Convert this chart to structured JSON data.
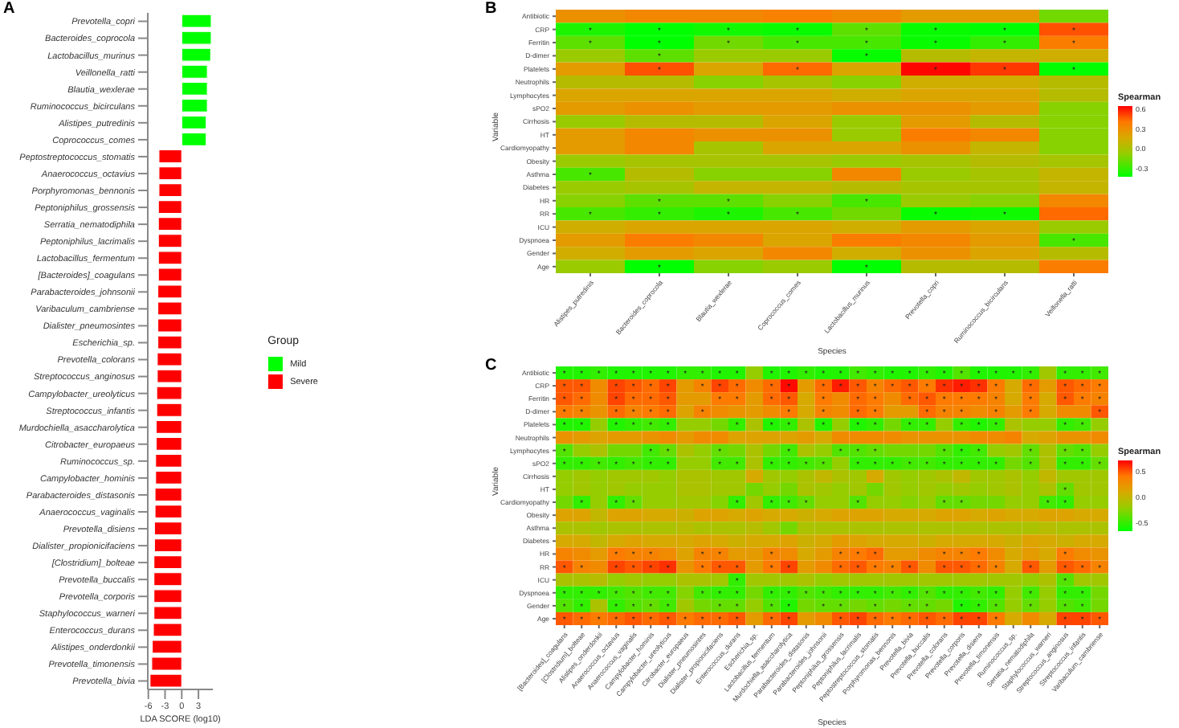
{
  "chart_data": [
    {
      "type": "bar",
      "orientation": "horizontal",
      "stacked": true,
      "annotations": [
        "A"
      ],
      "xlabel": "LDA SCORE (log10)",
      "legend_title": "Group",
      "legend": "right",
      "xlim": [
        -6.1,
        5.6
      ],
      "xticks": [
        -6,
        -3,
        0,
        3
      ],
      "categories": [
        "Prevotella_copri",
        "Bacteroides_coprocola",
        "Lactobacillus_murinus",
        "Veillonella_ratti",
        "Blautia_wexlerae",
        "Ruminococcus_bicirculans",
        "Alistipes_putredinis",
        "Coprococcus_comes",
        "Peptostreptococcus_stomatis",
        "Anaerococcus_octavius",
        "Porphyromonas_bennonis",
        "Peptoniphilus_grossensis",
        "Serratia_nematodiphila",
        "Peptoniphilus_lacrimalis",
        "Lactobacillus_fermentum",
        "[Bacteroides]_coagulans",
        "Parabacteroides_johnsonii",
        "Varibaculum_cambriense",
        "Dialister_pneumosintes",
        "Escherichia_sp.",
        "Prevotella_colorans",
        "Streptococcus_anginosus",
        "Campylobacter_ureolyticus",
        "Streptococcus_infantis",
        "Murdochiella_asaccharolytica",
        "Citrobacter_europaeus",
        "Ruminococcus_sp.",
        "Campylobacter_hominis",
        "Parabacteroides_distasonis",
        "Anaerococcus_vaginalis",
        "Prevotella_disiens",
        "Dialister_propionicifaciens",
        "[Clostridium]_bolteae",
        "Prevotella_buccalis",
        "Prevotella_corporis",
        "Staphylococcus_warneri",
        "Enterococcus_durans",
        "Alistipes_onderdonkii",
        "Prevotella_timonensis",
        "Prevotella_bivia"
      ],
      "series": [
        {
          "name": "Mild",
          "color": "#00ff00",
          "values": [
            5.3,
            5.3,
            5.2,
            4.6,
            4.6,
            4.6,
            4.4,
            4.4,
            null,
            null,
            null,
            null,
            null,
            null,
            null,
            null,
            null,
            null,
            null,
            null,
            null,
            null,
            null,
            null,
            null,
            null,
            null,
            null,
            null,
            null,
            null,
            null,
            null,
            null,
            null,
            null,
            null,
            null,
            null,
            null
          ]
        },
        {
          "name": "Severe",
          "color": "#ff0000",
          "values": [
            null,
            null,
            null,
            null,
            null,
            null,
            null,
            null,
            -4.1,
            -4.1,
            -4.1,
            -4.2,
            -4.2,
            -4.2,
            -4.2,
            -4.2,
            -4.3,
            -4.3,
            -4.3,
            -4.3,
            -4.4,
            -4.4,
            -4.5,
            -4.5,
            -4.6,
            -4.6,
            -4.7,
            -4.7,
            -4.8,
            -4.8,
            -4.9,
            -4.9,
            -5.0,
            -5.0,
            -5.0,
            -5.0,
            -5.1,
            -5.3,
            -5.4,
            -5.7
          ]
        }
      ]
    },
    {
      "type": "heatmap",
      "annotations": [
        "B"
      ],
      "xlabel": "Species",
      "ylabel": "Variable",
      "clabel": "Spearman",
      "clim": [
        -0.42,
        0.66
      ],
      "cticks": [
        -0.3,
        {
          "value": 0,
          "label": "0.0"
        },
        0.3,
        0.6
      ],
      "categories": [
        "Alistipes_putredinis",
        "Bacteroides_coprocola",
        "Blautia_wexlerae",
        "Coprococcus_comes",
        "Lactobacillus_murinus",
        "Prevotella_copri",
        "Ruminococcus_bicirculans",
        "Veillonella_ratti"
      ],
      "y_categories": [
        "Antibiotic",
        "CRP",
        "Ferritin",
        "D-dimer",
        "Platelets",
        "Neutrophils",
        "Lymphocytes",
        "sPO2",
        "Cirrhosis",
        "HT",
        "Cardiomyopathy",
        "Obesity",
        "Asthma",
        "Diabetes",
        "HR",
        "RR",
        "ICU",
        "Dyspnoea",
        "Gender",
        "Age"
      ],
      "cells": [
        [
          0.3,
          0.35,
          0.35,
          0.38,
          0.33,
          0.25,
          0.25,
          -0.15
        ],
        [
          -0.35,
          -0.42,
          -0.38,
          -0.4,
          -0.2,
          -0.4,
          -0.42,
          0.5
        ],
        [
          -0.2,
          -0.42,
          -0.15,
          -0.25,
          -0.25,
          -0.4,
          -0.3,
          0.4
        ],
        [
          -0.05,
          -0.2,
          -0.05,
          -0.05,
          -0.4,
          0.05,
          0.1,
          0.15
        ],
        [
          0.25,
          0.5,
          0.2,
          0.45,
          0.2,
          0.65,
          0.55,
          -0.42
        ],
        [
          0.05,
          0.05,
          -0.1,
          0,
          -0.1,
          0.15,
          0.15,
          0.05
        ],
        [
          0.2,
          0.2,
          0.2,
          0.2,
          0.15,
          0.2,
          0.2,
          0.05
        ],
        [
          0.25,
          0.3,
          0.25,
          0.25,
          0.3,
          0.3,
          0.25,
          -0.1
        ],
        [
          -0.05,
          0.05,
          0.05,
          0.2,
          -0.05,
          0.25,
          0.05,
          -0.1
        ],
        [
          0.25,
          0.35,
          0.3,
          0.3,
          -0.05,
          0.4,
          0.35,
          -0.1
        ],
        [
          0.25,
          0.35,
          0,
          0.2,
          0.2,
          0.3,
          0.1,
          -0.1
        ],
        [
          -0.05,
          0,
          0,
          0,
          -0.05,
          0,
          0.05,
          0
        ],
        [
          -0.25,
          0.05,
          -0.1,
          -0.1,
          0.35,
          -0.05,
          0,
          0.1
        ],
        [
          -0.05,
          0,
          0.1,
          0.1,
          0.05,
          0,
          0,
          0.1
        ],
        [
          -0.1,
          -0.2,
          -0.2,
          -0.1,
          -0.25,
          -0.05,
          -0.1,
          0.35
        ],
        [
          -0.25,
          -0.3,
          -0.35,
          -0.25,
          -0.15,
          -0.4,
          -0.38,
          0.45
        ],
        [
          0.15,
          0.2,
          0.2,
          0.2,
          0.15,
          0.25,
          0.2,
          -0.05
        ],
        [
          0.25,
          0.4,
          0.35,
          0.2,
          0.4,
          0.35,
          0.25,
          -0.25
        ],
        [
          0.15,
          0.25,
          0.2,
          0.35,
          0.15,
          0.3,
          0.2,
          0.05
        ],
        [
          -0.05,
          -0.42,
          -0.1,
          -0.05,
          -0.42,
          0.05,
          0.05,
          0.4
        ]
      ],
      "cell_labels": [
        [
          null,
          null,
          null,
          null,
          null,
          null,
          null,
          null
        ],
        [
          "*",
          "*",
          "*",
          "*",
          "*",
          "*",
          "*",
          "*"
        ],
        [
          "*",
          "*",
          "*",
          "*",
          "*",
          "*",
          "*",
          "*"
        ],
        [
          null,
          "*",
          null,
          null,
          "*",
          null,
          null,
          null
        ],
        [
          null,
          "*",
          null,
          "*",
          null,
          "*",
          "*",
          "*"
        ],
        [
          null,
          null,
          null,
          null,
          null,
          null,
          null,
          null
        ],
        [
          null,
          null,
          null,
          null,
          null,
          null,
          null,
          null
        ],
        [
          null,
          null,
          null,
          null,
          null,
          null,
          null,
          null
        ],
        [
          null,
          null,
          null,
          null,
          null,
          null,
          null,
          null
        ],
        [
          null,
          null,
          null,
          null,
          null,
          null,
          null,
          null
        ],
        [
          null,
          null,
          null,
          null,
          null,
          null,
          null,
          null
        ],
        [
          null,
          null,
          null,
          null,
          null,
          null,
          null,
          null
        ],
        [
          "*",
          null,
          null,
          null,
          null,
          null,
          null,
          null
        ],
        [
          null,
          null,
          null,
          null,
          null,
          null,
          null,
          null
        ],
        [
          null,
          "*",
          "*",
          null,
          "*",
          null,
          null,
          null
        ],
        [
          "*",
          "*",
          "*",
          "*",
          null,
          "*",
          "*",
          null
        ],
        [
          null,
          null,
          null,
          null,
          null,
          null,
          null,
          null
        ],
        [
          null,
          null,
          null,
          null,
          null,
          null,
          null,
          "*"
        ],
        [
          null,
          null,
          null,
          null,
          null,
          null,
          null,
          null
        ],
        [
          null,
          "*",
          null,
          null,
          "*",
          null,
          null,
          null
        ]
      ]
    },
    {
      "type": "heatmap",
      "annotations": [
        "C"
      ],
      "xlabel": "Species",
      "ylabel": "Variable",
      "clabel": "Spearman",
      "clim": [
        -0.65,
        0.72
      ],
      "cticks": [
        -0.5,
        {
          "value": 0,
          "label": "0.0"
        },
        0.5
      ],
      "categories": [
        "[Bacteroides]_coagulans",
        "[Clostridium]_bolteae",
        "Alistipes_onderdonkii",
        "Anaerococcus_octavius",
        "Anaerococcus_vaginalis",
        "Campylobacter_hominis",
        "Campylobacter_ureolyticus",
        "Citrobacter_europaeus",
        "Dialister_pneumosintes",
        "Dialister_propionicifaciens",
        "Enterococcus_durans",
        "Escherichia_sp.",
        "Lactobacillus_fermentum",
        "Murdochiella_asaccharolytica",
        "Parabacteroides_distasonis",
        "Parabacteroides_johnsonii",
        "Peptoniphilus_grossensis",
        "Peptoniphilus_lacrimalis",
        "Peptostreptococcus_stomatis",
        "Porphyromonas_bennonis",
        "Prevotella_bivia",
        "Prevotella_buccalis",
        "Prevotella_colorans",
        "Prevotella_corporis",
        "Prevotella_disiens",
        "Prevotella_timonensis",
        "Ruminococcus_sp.",
        "Serratia_nematodiphila",
        "Staphylococcus_warneri",
        "Streptococcus_anginosus",
        "Streptococcus_infantis",
        "Varibaculum_cambriense"
      ],
      "y_categories": [
        "Antibiotic",
        "CRP",
        "Ferritin",
        "D-dimer",
        "Platelets",
        "Neutrophils",
        "Lymphocytes",
        "sPO2",
        "Cirrhosis",
        "HT",
        "Cardiomyopathy",
        "Obesity",
        "Asthma",
        "Diabetes",
        "HR",
        "RR",
        "ICU",
        "Dyspnoea",
        "Gender",
        "Age"
      ],
      "cells": [
        [
          -0.55,
          -0.55,
          -0.5,
          -0.55,
          -0.55,
          -0.55,
          -0.55,
          -0.5,
          -0.5,
          -0.55,
          -0.55,
          -0.2,
          -0.55,
          -0.55,
          -0.5,
          -0.55,
          -0.55,
          -0.45,
          -0.5,
          -0.55,
          -0.55,
          -0.5,
          -0.55,
          -0.4,
          -0.55,
          -0.55,
          -0.55,
          -0.5,
          -0.15,
          -0.5,
          -0.5,
          -0.45
        ],
        [
          0.5,
          0.5,
          0.3,
          0.55,
          0.5,
          0.45,
          0.55,
          0.2,
          0.35,
          0.55,
          0.45,
          0.3,
          0.45,
          0.7,
          0.2,
          0.45,
          0.65,
          0.5,
          0.35,
          0.45,
          0.5,
          0.4,
          0.6,
          0.65,
          0.6,
          0.4,
          0.1,
          0.45,
          0.2,
          0.5,
          0.45,
          0.4
        ],
        [
          0.5,
          0.45,
          0.3,
          0.55,
          0.45,
          0.45,
          0.5,
          0.2,
          0.2,
          0.4,
          0.4,
          0.2,
          0.45,
          0.5,
          0.1,
          0.4,
          0.3,
          0.45,
          0.4,
          0.3,
          0.45,
          0.5,
          0.4,
          0.4,
          0.4,
          0.35,
          0.1,
          0.4,
          0.1,
          0.5,
          0.4,
          0.35
        ],
        [
          0.4,
          0.35,
          0.25,
          0.45,
          0.35,
          0.4,
          0.45,
          0.15,
          0.35,
          0.3,
          0.25,
          0.2,
          0.3,
          0.4,
          0.1,
          0.35,
          0.3,
          0.45,
          0.4,
          0.2,
          0.2,
          0.45,
          0.35,
          0.35,
          0.3,
          0.35,
          0.2,
          0.4,
          0.1,
          0.3,
          0.3,
          0.5
        ],
        [
          -0.55,
          -0.55,
          -0.2,
          -0.55,
          -0.5,
          -0.45,
          -0.5,
          -0.2,
          -0.2,
          -0.3,
          -0.5,
          -0.1,
          -0.55,
          -0.5,
          -0.1,
          -0.55,
          -0.2,
          -0.55,
          -0.5,
          -0.3,
          -0.5,
          -0.5,
          -0.2,
          -0.5,
          -0.55,
          -0.5,
          -0.1,
          -0.2,
          -0.2,
          -0.5,
          -0.45,
          -0.2
        ],
        [
          0.25,
          0.2,
          0.15,
          0.2,
          0.2,
          0.25,
          0.3,
          0.2,
          0.3,
          0.3,
          0.15,
          0.15,
          0.15,
          0.15,
          0.2,
          0.1,
          0.3,
          0.3,
          0.3,
          0.3,
          0.25,
          0.25,
          0.25,
          0.25,
          0.3,
          0.3,
          0.35,
          0.1,
          0.15,
          0.25,
          0.25,
          0.3
        ],
        [
          -0.4,
          -0.2,
          -0.1,
          -0.3,
          -0.3,
          -0.45,
          -0.35,
          -0.1,
          -0.2,
          -0.35,
          -0.3,
          -0.1,
          -0.3,
          -0.45,
          -0.1,
          -0.2,
          -0.4,
          -0.4,
          -0.35,
          -0.3,
          -0.3,
          -0.3,
          -0.4,
          -0.5,
          -0.45,
          -0.2,
          -0.15,
          -0.35,
          -0.1,
          -0.35,
          -0.4,
          -0.2
        ],
        [
          -0.5,
          -0.5,
          -0.45,
          -0.5,
          -0.45,
          -0.5,
          -0.5,
          -0.2,
          -0.2,
          -0.45,
          -0.45,
          -0.1,
          -0.5,
          -0.5,
          -0.45,
          -0.4,
          -0.2,
          -0.5,
          -0.5,
          -0.5,
          -0.45,
          -0.45,
          -0.5,
          -0.5,
          -0.5,
          -0.5,
          -0.3,
          -0.4,
          -0.1,
          -0.5,
          -0.5,
          -0.35
        ],
        [
          -0.2,
          -0.15,
          -0.2,
          -0.15,
          -0.15,
          -0.15,
          -0.2,
          -0.1,
          -0.1,
          -0.15,
          -0.15,
          0.1,
          -0.15,
          -0.2,
          -0.1,
          0,
          -0.1,
          -0.15,
          0.1,
          -0.15,
          -0.2,
          -0.15,
          -0.1,
          0,
          -0.15,
          -0.15,
          -0.1,
          -0.2,
          0,
          -0.15,
          -0.15,
          -0.15
        ],
        [
          -0.2,
          -0.15,
          -0.2,
          -0.15,
          -0.2,
          -0.2,
          -0.2,
          -0.1,
          -0.1,
          -0.15,
          -0.15,
          -0.3,
          -0.2,
          -0.3,
          -0.1,
          -0.15,
          -0.2,
          -0.15,
          -0.3,
          -0.15,
          -0.2,
          -0.15,
          -0.2,
          -0.15,
          -0.2,
          -0.15,
          -0.1,
          -0.2,
          -0.1,
          -0.35,
          -0.15,
          -0.15
        ],
        [
          -0.3,
          -0.5,
          -0.2,
          -0.5,
          -0.35,
          -0.2,
          -0.2,
          -0.15,
          -0.15,
          -0.25,
          -0.5,
          -0.15,
          -0.5,
          -0.45,
          -0.35,
          -0.2,
          -0.2,
          -0.4,
          -0.2,
          -0.2,
          -0.25,
          -0.2,
          -0.35,
          -0.35,
          -0.3,
          -0.3,
          -0.2,
          -0.2,
          -0.45,
          -0.5,
          -0.2,
          -0.2
        ],
        [
          0.15,
          0.15,
          0,
          0.15,
          0.15,
          0.1,
          0.1,
          0.05,
          0.15,
          0.15,
          0.1,
          0.15,
          0.1,
          0.1,
          0.05,
          0.1,
          0.15,
          0.15,
          0.15,
          0.1,
          0.1,
          0.1,
          0.15,
          0.15,
          0.1,
          0.15,
          0.1,
          0.1,
          0.15,
          0.15,
          0.1,
          0.1
        ],
        [
          -0.1,
          -0.1,
          -0.15,
          -0.1,
          -0.1,
          -0.1,
          -0.1,
          -0.05,
          -0.1,
          -0.1,
          -0.1,
          -0.05,
          -0.15,
          -0.3,
          -0.1,
          -0.1,
          -0.1,
          -0.1,
          -0.1,
          -0.1,
          -0.1,
          -0.1,
          -0.1,
          -0.1,
          -0.1,
          -0.1,
          -0.1,
          -0.1,
          -0.05,
          -0.1,
          -0.1,
          -0.1
        ],
        [
          0.1,
          0.1,
          0,
          0.1,
          0.15,
          0.1,
          0.1,
          0.1,
          0.15,
          0.1,
          0.05,
          0.1,
          0.1,
          0.15,
          0.05,
          0.1,
          0.2,
          0.15,
          0.1,
          0.1,
          0.1,
          0.05,
          0.1,
          0.1,
          0.1,
          0.1,
          0.05,
          0.15,
          0.1,
          0.05,
          0.1,
          0.1
        ],
        [
          0.35,
          0.3,
          0.2,
          0.4,
          0.35,
          0.35,
          0.3,
          0.15,
          0.35,
          0.35,
          0.2,
          0.2,
          0.35,
          0.3,
          0.1,
          0.2,
          0.35,
          0.4,
          0.45,
          0.2,
          0.2,
          0.3,
          0.35,
          0.35,
          0.4,
          0.3,
          0.1,
          0.2,
          0.1,
          0.4,
          0.3,
          0.25
        ],
        [
          0.5,
          0.35,
          0.3,
          0.55,
          0.5,
          0.55,
          0.6,
          0.25,
          0.4,
          0.5,
          0.5,
          0.2,
          0.4,
          0.55,
          0.2,
          0.3,
          0.45,
          0.5,
          0.4,
          0.35,
          0.5,
          0.3,
          0.5,
          0.5,
          0.45,
          0.35,
          0.1,
          0.5,
          0.2,
          0.5,
          0.45,
          0.35
        ],
        [
          -0.1,
          -0.1,
          -0.05,
          -0.2,
          -0.15,
          -0.2,
          -0.2,
          -0.1,
          -0.1,
          -0.15,
          -0.5,
          -0.15,
          -0.15,
          -0.15,
          -0.1,
          -0.2,
          -0.15,
          -0.15,
          -0.15,
          -0.15,
          -0.15,
          -0.15,
          -0.15,
          -0.15,
          -0.15,
          -0.15,
          -0.15,
          -0.2,
          -0.1,
          -0.4,
          -0.15,
          -0.15
        ],
        [
          -0.5,
          -0.5,
          -0.5,
          -0.45,
          -0.4,
          -0.45,
          -0.45,
          -0.25,
          -0.45,
          -0.5,
          -0.5,
          -0.3,
          -0.5,
          -0.5,
          -0.4,
          -0.45,
          -0.5,
          -0.5,
          -0.5,
          -0.45,
          -0.5,
          -0.4,
          -0.5,
          -0.5,
          -0.45,
          -0.5,
          -0.2,
          -0.45,
          -0.2,
          -0.5,
          -0.5,
          -0.3
        ],
        [
          -0.4,
          -0.5,
          -0.1,
          -0.5,
          -0.4,
          -0.35,
          -0.45,
          -0.15,
          -0.3,
          -0.35,
          -0.35,
          -0.2,
          -0.4,
          -0.55,
          -0.3,
          -0.35,
          -0.35,
          -0.3,
          -0.35,
          -0.3,
          -0.35,
          -0.35,
          -0.3,
          -0.55,
          -0.5,
          -0.4,
          -0.2,
          -0.35,
          -0.2,
          -0.4,
          -0.45,
          -0.3
        ],
        [
          0.5,
          0.45,
          0.4,
          0.45,
          0.5,
          0.45,
          0.5,
          0.4,
          0.45,
          0.45,
          0.5,
          0.2,
          0.45,
          0.55,
          0.2,
          0.3,
          0.5,
          0.55,
          0.45,
          0.4,
          0.45,
          0.5,
          0.45,
          0.55,
          0.55,
          0.4,
          0.1,
          0.3,
          0.1,
          0.55,
          0.55,
          0.5
        ]
      ],
      "cell_labels": [
        [
          "*",
          "*",
          "*",
          "*",
          "*",
          "*",
          "*",
          "*",
          "*",
          "*",
          "*",
          null,
          "*",
          "*",
          "*",
          "*",
          "*",
          "*",
          "*",
          "*",
          "*",
          "*",
          "*",
          "*",
          "*",
          "*",
          "*",
          "*",
          null,
          "*",
          "*",
          "*"
        ],
        [
          "*",
          "*",
          null,
          "*",
          "*",
          "*",
          "*",
          null,
          "*",
          "*",
          "*",
          null,
          "*",
          "*",
          null,
          "*",
          "*",
          "*",
          "*",
          "*",
          "*",
          "*",
          "*",
          "*",
          "*",
          "*",
          null,
          "*",
          null,
          "*",
          "*",
          "*"
        ],
        [
          "*",
          "*",
          null,
          "*",
          "*",
          "*",
          "*",
          null,
          null,
          "*",
          "*",
          null,
          "*",
          "*",
          null,
          "*",
          null,
          "*",
          "*",
          null,
          "*",
          "*",
          "*",
          "*",
          "*",
          "*",
          null,
          "*",
          null,
          "*",
          "*",
          "*"
        ],
        [
          "*",
          "*",
          null,
          "*",
          "*",
          "*",
          "*",
          null,
          "*",
          null,
          null,
          null,
          null,
          "*",
          null,
          "*",
          null,
          "*",
          "*",
          null,
          null,
          "*",
          "*",
          "*",
          null,
          "*",
          null,
          "*",
          null,
          null,
          null,
          "*"
        ],
        [
          "*",
          "*",
          null,
          "*",
          "*",
          "*",
          "*",
          null,
          null,
          null,
          "*",
          null,
          "*",
          "*",
          null,
          "*",
          null,
          "*",
          "*",
          null,
          "*",
          "*",
          null,
          "*",
          "*",
          "*",
          null,
          null,
          null,
          "*",
          "*",
          null
        ],
        [
          null,
          null,
          null,
          null,
          null,
          null,
          null,
          null,
          null,
          null,
          null,
          null,
          null,
          null,
          null,
          null,
          null,
          null,
          null,
          null,
          null,
          null,
          null,
          null,
          null,
          null,
          null,
          null,
          null,
          null,
          null,
          null
        ],
        [
          "*",
          null,
          null,
          null,
          null,
          "*",
          "*",
          null,
          null,
          "*",
          null,
          null,
          null,
          "*",
          null,
          null,
          "*",
          "*",
          "*",
          null,
          null,
          null,
          "*",
          "*",
          "*",
          null,
          null,
          "*",
          null,
          "*",
          "*",
          null
        ],
        [
          "*",
          "*",
          "*",
          "*",
          "*",
          "*",
          "*",
          null,
          null,
          "*",
          "*",
          null,
          "*",
          "*",
          "*",
          "*",
          null,
          "*",
          "*",
          "*",
          "*",
          "*",
          "*",
          "*",
          "*",
          "*",
          null,
          "*",
          null,
          "*",
          "*",
          "*"
        ],
        [
          null,
          null,
          null,
          null,
          null,
          null,
          null,
          null,
          null,
          null,
          null,
          null,
          null,
          null,
          null,
          null,
          null,
          null,
          null,
          null,
          null,
          null,
          null,
          null,
          null,
          null,
          null,
          null,
          null,
          null,
          null,
          null
        ],
        [
          null,
          null,
          null,
          null,
          null,
          null,
          null,
          null,
          null,
          null,
          null,
          null,
          null,
          null,
          null,
          null,
          null,
          null,
          null,
          null,
          null,
          null,
          null,
          null,
          null,
          null,
          null,
          null,
          null,
          "*",
          null,
          null
        ],
        [
          null,
          "*",
          null,
          "*",
          "*",
          null,
          null,
          null,
          null,
          null,
          "*",
          null,
          "*",
          "*",
          "*",
          null,
          null,
          "*",
          null,
          null,
          null,
          null,
          "*",
          "*",
          null,
          null,
          null,
          null,
          "*",
          "*",
          null,
          null
        ],
        [
          null,
          null,
          null,
          null,
          null,
          null,
          null,
          null,
          null,
          null,
          null,
          null,
          null,
          null,
          null,
          null,
          null,
          null,
          null,
          null,
          null,
          null,
          null,
          null,
          null,
          null,
          null,
          null,
          null,
          null,
          null,
          null
        ],
        [
          null,
          null,
          null,
          null,
          null,
          null,
          null,
          null,
          null,
          null,
          null,
          null,
          null,
          null,
          null,
          null,
          null,
          null,
          null,
          null,
          null,
          null,
          null,
          null,
          null,
          null,
          null,
          null,
          null,
          null,
          null,
          null
        ],
        [
          null,
          null,
          null,
          null,
          null,
          null,
          null,
          null,
          null,
          null,
          null,
          null,
          null,
          null,
          null,
          null,
          null,
          null,
          null,
          null,
          null,
          null,
          null,
          null,
          null,
          null,
          null,
          null,
          null,
          null,
          null,
          null
        ],
        [
          null,
          null,
          null,
          "*",
          "*",
          "*",
          null,
          null,
          "*",
          "*",
          null,
          null,
          "*",
          null,
          null,
          null,
          "*",
          "*",
          "*",
          null,
          null,
          null,
          "*",
          "*",
          "*",
          null,
          null,
          null,
          null,
          "*",
          null,
          null
        ],
        [
          "*",
          "*",
          null,
          "*",
          "*",
          "*",
          "*",
          null,
          "*",
          "*",
          "*",
          null,
          "*",
          "*",
          null,
          null,
          "*",
          "*",
          "*",
          "*",
          "*",
          null,
          "*",
          "*",
          "*",
          "*",
          null,
          "*",
          null,
          "*",
          "*",
          "*"
        ],
        [
          null,
          null,
          null,
          null,
          null,
          null,
          null,
          null,
          null,
          null,
          "*",
          null,
          null,
          null,
          null,
          null,
          null,
          null,
          null,
          null,
          null,
          null,
          null,
          null,
          null,
          null,
          null,
          null,
          null,
          "*",
          null,
          null
        ],
        [
          "*",
          "*",
          "*",
          "*",
          "*",
          "*",
          "*",
          null,
          "*",
          "*",
          "*",
          null,
          "*",
          "*",
          "*",
          "*",
          "*",
          "*",
          "*",
          "*",
          "*",
          "*",
          "*",
          "*",
          "*",
          "*",
          null,
          "*",
          null,
          "*",
          "*",
          null
        ],
        [
          "*",
          "*",
          null,
          "*",
          "*",
          "*",
          "*",
          null,
          null,
          "*",
          "*",
          null,
          "*",
          "*",
          null,
          "*",
          "*",
          null,
          "*",
          null,
          "*",
          "*",
          null,
          "*",
          "*",
          "*",
          null,
          "*",
          null,
          "*",
          "*",
          null
        ],
        [
          "*",
          "*",
          "*",
          "*",
          "*",
          "*",
          "*",
          "*",
          "*",
          "*",
          "*",
          null,
          "*",
          "*",
          null,
          null,
          "*",
          "*",
          "*",
          "*",
          "*",
          "*",
          "*",
          "*",
          "*",
          "*",
          null,
          null,
          null,
          "*",
          "*",
          "*"
        ]
      ]
    }
  ]
}
